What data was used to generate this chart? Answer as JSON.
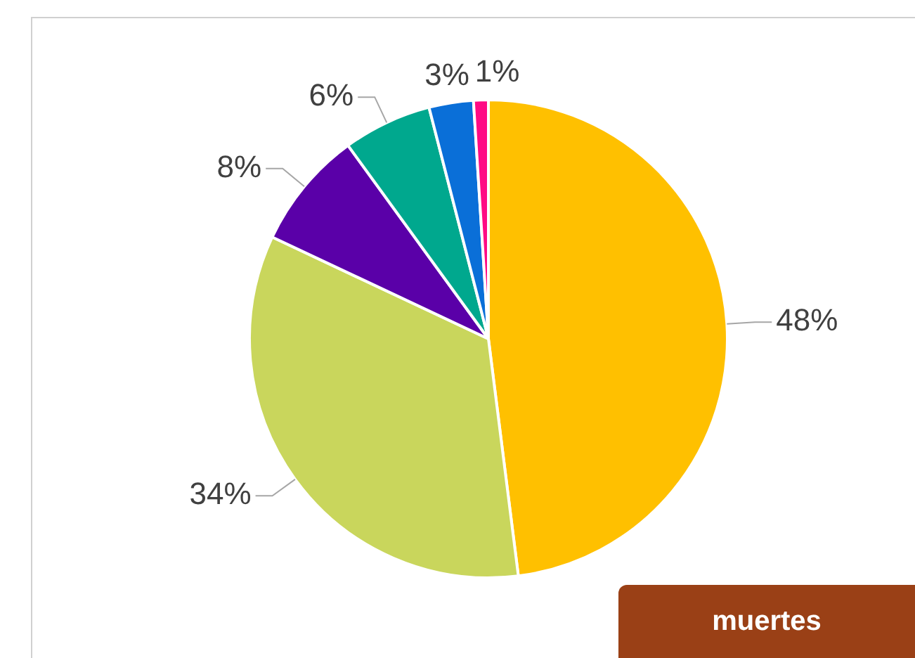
{
  "chart_data": {
    "type": "pie",
    "categories": [
      null,
      null,
      null,
      null,
      null,
      null
    ],
    "values": [
      48,
      34,
      8,
      6,
      3,
      1
    ],
    "colors": [
      "#ffc000",
      "#c9d65c",
      "#5a00a8",
      "#00a88e",
      "#0a6fd8",
      "#ff0a84"
    ],
    "value_labels": [
      "48%",
      "34%",
      "8%",
      "6%",
      "3%",
      "1%"
    ],
    "annotations": [
      "muertes"
    ],
    "legend": false
  }
}
